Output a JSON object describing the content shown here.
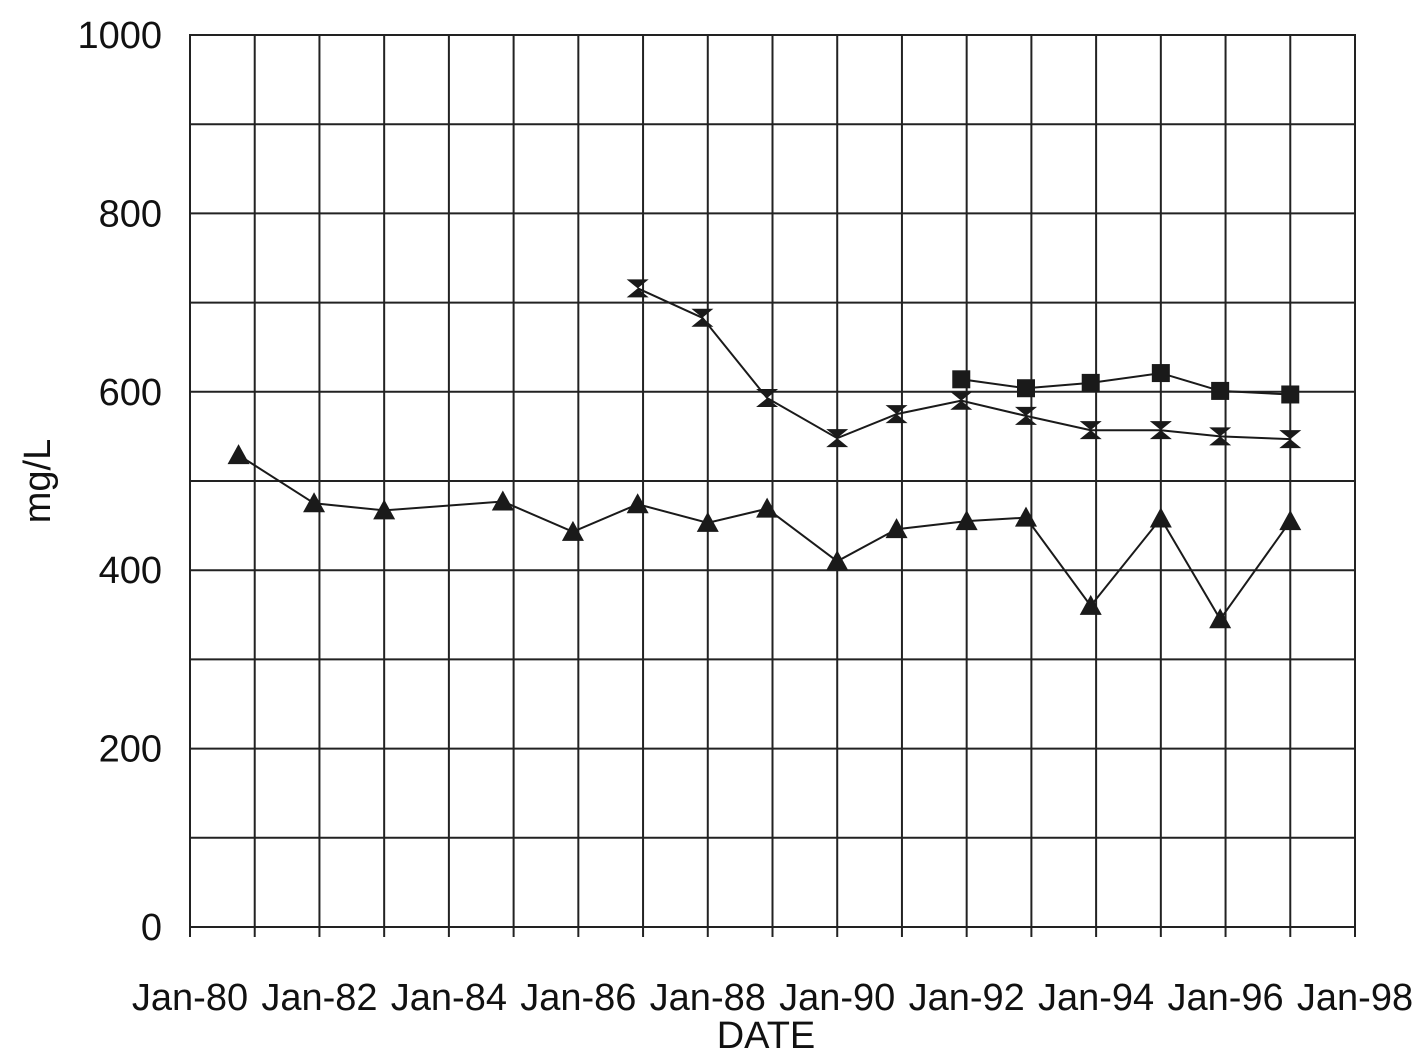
{
  "chart_data": {
    "type": "line",
    "xlabel": "DATE",
    "ylabel": "mg/L",
    "ylim": [
      0,
      1000
    ],
    "yticks": [
      0,
      200,
      400,
      600,
      800,
      1000
    ],
    "xlim": [
      "1980-01",
      "1998-01"
    ],
    "xticks": [
      "Jan-80",
      "Jan-82",
      "Jan-84",
      "Jan-86",
      "Jan-88",
      "Jan-90",
      "Jan-92",
      "Jan-94",
      "Jan-96",
      "Jan-98"
    ],
    "grid": true,
    "legend": "none",
    "series": [
      {
        "marker": "triangle",
        "x": [
          "1980-10",
          "1981-12",
          "1983-01",
          "1984-11",
          "1985-12",
          "1986-12",
          "1988-01",
          "1988-12",
          "1990-01",
          "1990-12",
          "1992-01",
          "1992-12",
          "1993-12",
          "1995-01",
          "1995-12",
          "1997-01"
        ],
        "y": [
          529,
          475,
          467,
          477,
          443,
          474,
          453,
          469,
          410,
          446,
          455,
          459,
          360,
          458,
          345,
          455
        ]
      },
      {
        "marker": "hourglass",
        "x": [
          "1986-12",
          "1987-12",
          "1988-12",
          "1990-01",
          "1990-12",
          "1991-12",
          "1992-12",
          "1993-12",
          "1995-01",
          "1995-12",
          "1997-01"
        ],
        "y": [
          716,
          683,
          593,
          548,
          575,
          590,
          573,
          557,
          557,
          550,
          547
        ]
      },
      {
        "marker": "square",
        "x": [
          "1991-12",
          "1992-12",
          "1993-12",
          "1995-01",
          "1995-12",
          "1997-01"
        ],
        "y": [
          614,
          604,
          610,
          621,
          601,
          597
        ]
      }
    ]
  }
}
